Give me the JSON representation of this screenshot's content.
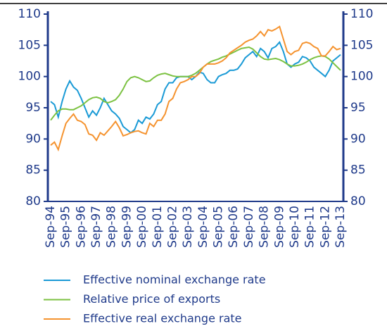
{
  "chart_data": {
    "type": "line",
    "categories": [
      "Sep-94",
      null,
      null,
      null,
      "Sep-95",
      null,
      null,
      null,
      "Sep-96",
      null,
      null,
      null,
      "Sep-97",
      null,
      null,
      null,
      "Sep-98",
      null,
      null,
      null,
      "Sep-99",
      null,
      null,
      null,
      "Sep-00",
      null,
      null,
      null,
      "Sep-01",
      null,
      null,
      null,
      "Sep-02",
      null,
      null,
      null,
      "Sep-03",
      null,
      null,
      null,
      "Sep-04",
      null,
      null,
      null,
      "Sep-05",
      null,
      null,
      null,
      "Sep-06",
      null,
      null,
      null,
      "Sep-07",
      null,
      null,
      null,
      "Sep-08",
      null,
      null,
      null,
      "Sep-09",
      null,
      null,
      null,
      "Sep-10",
      null,
      null,
      null,
      "Sep-11",
      null,
      null,
      null,
      "Sep-12",
      null,
      null,
      null,
      "Sep-13"
    ],
    "series": [
      {
        "name": "Effective nominal exchange rate",
        "color": "#1a9ad6",
        "values": [
          96,
          95.5,
          93.5,
          96,
          98,
          99.3,
          98.3,
          97.8,
          96.5,
          95,
          93.5,
          94.5,
          93.8,
          95,
          96.5,
          95.5,
          94.5,
          94,
          93.3,
          92,
          91.5,
          91,
          91.5,
          93,
          92.5,
          93.5,
          93.2,
          94,
          95.5,
          96,
          98,
          99,
          99,
          99.8,
          100,
          100,
          100,
          99.5,
          100,
          100.7,
          100.5,
          99.5,
          99,
          99,
          100,
          100.3,
          100.5,
          101,
          101,
          101.2,
          102,
          103,
          103.5,
          104,
          103.2,
          104.5,
          104,
          103,
          104.5,
          104.8,
          105.5,
          104,
          102,
          101.5,
          102,
          102.3,
          103.2,
          103,
          102.5,
          101.5,
          101,
          100.5,
          100,
          101,
          102.5,
          103,
          103.5
        ]
      },
      {
        "name": "Relative price of exports",
        "color": "#7cc242",
        "values": [
          93,
          93.8,
          94.5,
          94.8,
          94.8,
          94.7,
          94.7,
          95,
          95.3,
          95.8,
          96.3,
          96.6,
          96.7,
          96.5,
          96,
          95.8,
          96,
          96.3,
          97,
          98,
          99.2,
          99.8,
          100,
          99.8,
          99.5,
          99.2,
          99.3,
          99.8,
          100.2,
          100.4,
          100.5,
          100.3,
          100.1,
          100,
          100,
          100,
          100,
          100.2,
          100.5,
          101,
          101.5,
          102,
          102.4,
          102.6,
          102.8,
          103.1,
          103.3,
          103.6,
          103.9,
          104.2,
          104.5,
          104.6,
          104.7,
          104.4,
          103.8,
          103.2,
          102.8,
          102.7,
          102.8,
          102.9,
          102.7,
          102.4,
          102,
          101.7,
          101.7,
          101.8,
          102,
          102.3,
          102.7,
          103,
          103.2,
          103.3,
          103.2,
          102.8,
          102.2,
          101.6,
          101
        ]
      },
      {
        "name": "Effective real exchange rate",
        "color": "#f5932f",
        "values": [
          89,
          89.5,
          88.3,
          90.5,
          92.5,
          93.3,
          94,
          93,
          92.8,
          92.3,
          90.8,
          90.6,
          89.8,
          91,
          90.6,
          91.3,
          92,
          92.8,
          91.8,
          90.5,
          90.7,
          91,
          91.2,
          91.3,
          91,
          90.8,
          92.5,
          92,
          93,
          93,
          94,
          96,
          96.5,
          98,
          99,
          99.2,
          99.5,
          100,
          100,
          100.5,
          101.5,
          102,
          102,
          102,
          102.2,
          102.5,
          103,
          103.8,
          104.2,
          104.6,
          105,
          105.5,
          105.8,
          106,
          106.5,
          107.2,
          106.5,
          107.5,
          107.3,
          107.6,
          108,
          106,
          104,
          103.5,
          104,
          104.2,
          105.3,
          105.5,
          105.3,
          104.8,
          104.5,
          103.3,
          103.3,
          104,
          104.8,
          104.3,
          104.5
        ]
      }
    ],
    "ylim": [
      80,
      110
    ],
    "yticks": [
      80,
      85,
      90,
      95,
      100,
      105,
      110
    ],
    "y2lim": [
      80,
      110
    ],
    "y2ticks": [
      80,
      85,
      90,
      95,
      100,
      105,
      110
    ],
    "grid": false
  }
}
